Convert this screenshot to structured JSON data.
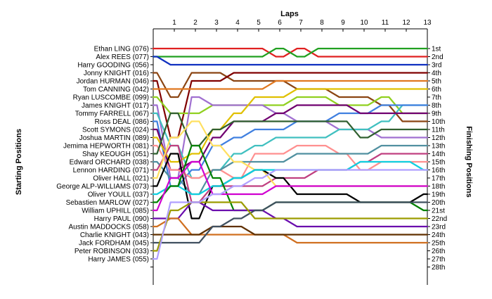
{
  "chart_data": {
    "type": "line",
    "title": "Laps",
    "ylabel_left": "Starting Positions",
    "ylabel_right": "Finishing Positions",
    "laps": [
      1,
      2,
      3,
      4,
      5,
      6,
      7,
      8,
      9,
      10,
      11,
      12,
      13
    ],
    "driver_labels": [
      "Ethan LING (076)",
      "Alex REES (077)",
      "Harry GOODING (056)",
      "Jonny KNIGHT (016)",
      "Jordan HURMAN (046)",
      "Tom CANNING (042)",
      "Ryan LUSCOMBE (099)",
      "James KNIGHT (017)",
      "Tommy FARRELL (067)",
      "Ross DEAL (086)",
      "Scott SYMONS (024)",
      "Joshua MARTIN (089)",
      "Jemima HEPWORTH (081)",
      "Shay KEOUGH (051)",
      "Edward ORCHARD (038)",
      "Lennon HARDING (071)",
      "Oliver HALL (021)",
      "George ALP-WILLIAMS (073)",
      "Oliver YOULL (037)",
      "Sebastien MARLOW (027)",
      "William UPHILL (085)",
      "Harry PAUL (090)",
      "Austin MADDOCKS (058)",
      "Charlie KNIGHT (043)",
      "Jack FORDHAM (045)",
      "Peter ROBINSON (033)",
      "Harry JAMES (055)"
    ],
    "finish_labels": [
      "1st",
      "2nd",
      "3rd",
      "4th",
      "5th",
      "6th",
      "7th",
      "8th",
      "9th",
      "10th",
      "11th",
      "12th",
      "13th",
      "14th",
      "15th",
      "16th",
      "17th",
      "18th",
      "19th",
      "20th",
      "21st",
      "22nd",
      "23rd",
      "24th",
      "25th",
      "26th",
      "27th",
      "28th"
    ],
    "series": [
      {
        "color": "#e02020",
        "values": [
          1,
          1,
          1,
          1,
          1,
          1,
          2,
          1,
          2,
          2,
          2,
          2,
          2,
          2
        ]
      },
      {
        "color": "#20a020",
        "values": [
          2,
          2,
          2,
          2,
          2,
          2,
          1,
          2,
          1,
          1,
          1,
          1,
          1,
          1
        ]
      },
      {
        "color": "#1030c0",
        "values": [
          2,
          3,
          3,
          3,
          3,
          3,
          3,
          3,
          3,
          3,
          3,
          3,
          3,
          3
        ]
      },
      {
        "color": "#8b4513",
        "values": [
          4,
          7,
          4,
          4,
          5,
          5,
          5,
          6,
          6,
          7,
          7,
          8,
          10,
          10
        ]
      },
      {
        "color": "#800000",
        "values": [
          5,
          12,
          5,
          5,
          4,
          4,
          4,
          4,
          4,
          4,
          4,
          4,
          4,
          4
        ]
      },
      {
        "color": "#e07820",
        "values": [
          6,
          6,
          6,
          6,
          6,
          6,
          5,
          5,
          5,
          5,
          5,
          5,
          5,
          5
        ]
      },
      {
        "color": "#90d020",
        "values": [
          7,
          9,
          9,
          8,
          8,
          8,
          8,
          7,
          7,
          8,
          8,
          7,
          9,
          9
        ]
      },
      {
        "color": "#a070d0",
        "values": [
          8,
          17,
          7,
          8,
          8,
          8,
          9,
          10,
          10,
          11,
          11,
          12,
          12,
          12
        ]
      },
      {
        "color": "#40c0c0",
        "values": [
          9,
          13,
          17,
          16,
          14,
          13,
          12,
          12,
          12,
          11,
          11,
          10,
          8,
          8
        ]
      },
      {
        "color": "#4080e0",
        "values": [
          10,
          18,
          16,
          13,
          12,
          11,
          11,
          10,
          10,
          9,
          9,
          8,
          8,
          8
        ]
      },
      {
        "color": "#700070",
        "values": [
          11,
          16,
          15,
          12,
          10,
          10,
          9,
          8,
          8,
          8,
          9,
          9,
          9,
          9
        ]
      },
      {
        "color": "#e0c000",
        "values": [
          12,
          15,
          14,
          11,
          9,
          7,
          7,
          6,
          6,
          6,
          6,
          6,
          6,
          6
        ]
      },
      {
        "color": "#ff9090",
        "values": [
          13,
          16,
          17,
          16,
          17,
          14,
          14,
          13,
          13,
          14,
          16,
          15,
          15,
          15
        ]
      },
      {
        "color": "#306030",
        "values": [
          14,
          9,
          13,
          11,
          10,
          10,
          10,
          10,
          10,
          10,
          12,
          11,
          11,
          11
        ]
      },
      {
        "color": "#5090a0",
        "values": [
          15,
          17,
          19,
          16,
          15,
          15,
          15,
          14,
          14,
          14,
          14,
          13,
          13,
          13
        ]
      },
      {
        "color": "#c04080",
        "values": [
          16,
          13,
          20,
          18,
          18,
          18,
          17,
          17,
          16,
          16,
          15,
          14,
          14,
          14
        ]
      },
      {
        "color": "#ffe060",
        "values": [
          17,
          12,
          10,
          13,
          15,
          16,
          18,
          18,
          18,
          18,
          18,
          18,
          18,
          18
        ]
      },
      {
        "color": "#000000",
        "values": [
          18,
          14,
          22,
          18,
          17,
          16,
          17,
          19,
          19,
          19,
          20,
          20,
          20,
          19
        ]
      },
      {
        "color": "#10d0e0",
        "values": [
          19,
          18,
          19,
          18,
          17,
          16,
          16,
          16,
          16,
          16,
          15,
          15,
          15,
          16
        ]
      },
      {
        "color": "#008000",
        "values": [
          20,
          18,
          13,
          17,
          21,
          21,
          20,
          20,
          20,
          20,
          20,
          20,
          20,
          21
        ]
      },
      {
        "color": "#d000d0",
        "values": [
          21,
          17,
          15,
          19,
          19,
          19,
          18,
          18,
          18,
          18,
          18,
          18,
          18,
          18
        ]
      },
      {
        "color": "#6a0dad",
        "values": [
          22,
          22,
          20,
          21,
          21,
          21,
          22,
          23,
          23,
          23,
          23,
          23,
          23,
          23
        ]
      },
      {
        "color": "#d07020",
        "values": [
          23,
          22,
          24,
          24,
          24,
          24,
          24,
          25,
          25,
          25,
          25,
          25,
          25,
          25
        ]
      },
      {
        "color": "#603000",
        "values": [
          24,
          24,
          24,
          23,
          23,
          24,
          24,
          24,
          24,
          24,
          24,
          24,
          24,
          24
        ]
      },
      {
        "color": "#405060",
        "values": [
          25,
          25,
          25,
          23,
          22,
          21,
          20,
          20,
          20,
          20,
          20,
          20,
          20,
          20
        ]
      },
      {
        "color": "#9c9c00",
        "values": [
          26,
          21,
          20,
          20,
          20,
          22,
          22,
          22,
          22,
          22,
          22,
          22,
          22,
          22
        ]
      },
      {
        "color": "#b0a0ff",
        "values": [
          27,
          20,
          20,
          19,
          18,
          17,
          16,
          16,
          16,
          16,
          16,
          16,
          16,
          16
        ]
      }
    ]
  }
}
